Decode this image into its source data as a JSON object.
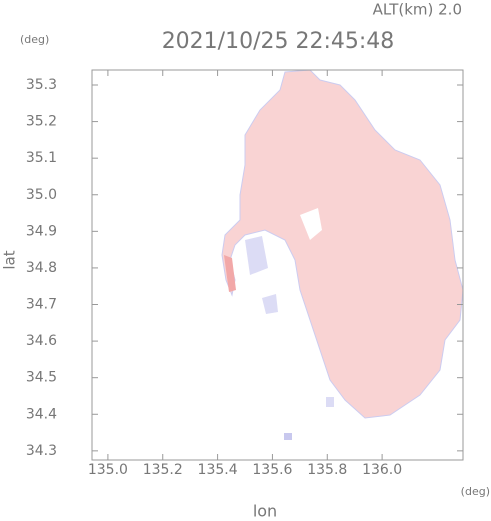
{
  "chart_data": {
    "type": "map",
    "title": "2021/10/25 22:45:48",
    "subtitle": "ALT(km)  2.0",
    "x_label": "lon",
    "x_unit": "(deg)",
    "y_label": "lat",
    "y_unit": "(deg)",
    "xlim": [
      134.942,
      136.295
    ],
    "ylim": [
      34.275,
      35.341
    ],
    "xticks": [
      {
        "value": 135.0,
        "label": "135.0"
      },
      135.2,
      135.4,
      135.6,
      135.8,
      {
        "value": 136.0,
        "label": "136.0"
      }
    ],
    "yticks": [
      34.3,
      34.4,
      34.5,
      34.6,
      34.7,
      34.8,
      34.9,
      {
        "value": 35.0,
        "label": "35.0"
      },
      35.1,
      35.2,
      35.3
    ]
  }
}
